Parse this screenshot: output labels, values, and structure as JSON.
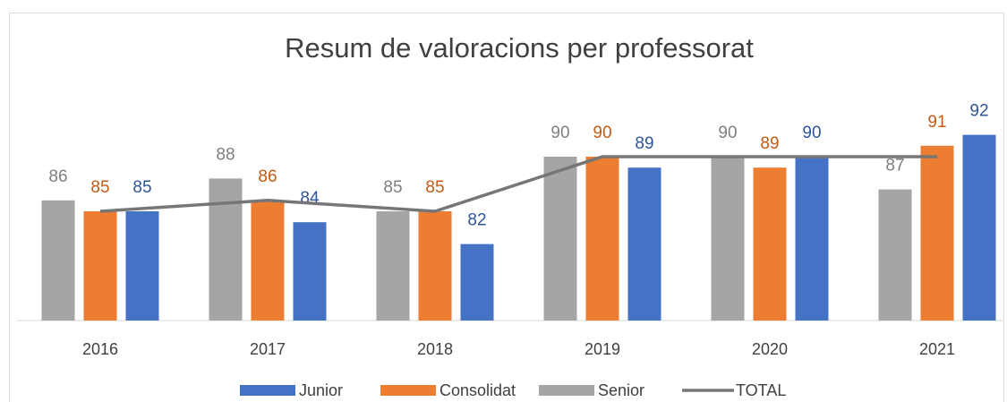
{
  "chart_data": {
    "type": "bar",
    "title": "Resum de valoracions per professorat",
    "categories": [
      "2016",
      "2017",
      "2018",
      "2019",
      "2020",
      "2021"
    ],
    "series": [
      {
        "name": "Junior",
        "type": "bar",
        "color": "#4472c4",
        "label_color": "#2f5597",
        "values": [
          85,
          84,
          82,
          89,
          90,
          92
        ]
      },
      {
        "name": "Consolidat",
        "type": "bar",
        "color": "#ed7d31",
        "label_color": "#c55a11",
        "values": [
          85,
          86,
          85,
          90,
          89,
          91
        ]
      },
      {
        "name": "Senior",
        "type": "bar",
        "color": "#a5a5a5",
        "label_color": "#7f7f7f",
        "values": [
          86,
          88,
          85,
          90,
          90,
          87
        ]
      },
      {
        "name": "TOTAL",
        "type": "line",
        "color": "#767676",
        "values": [
          85,
          86,
          85,
          90,
          90,
          90
        ]
      }
    ],
    "ylim": [
      75,
      95
    ],
    "legend": "bottom",
    "grid": false
  }
}
